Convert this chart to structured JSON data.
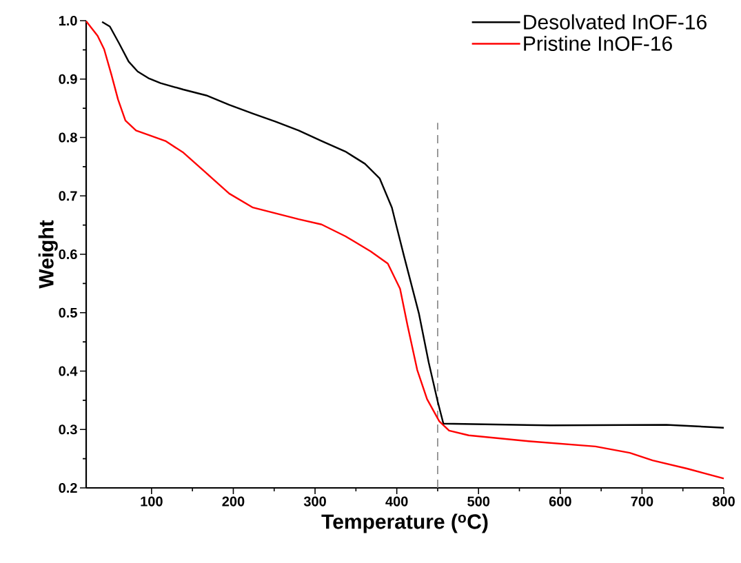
{
  "chart_data": {
    "type": "line",
    "xlabel": "Temperature ($^{o}$C)",
    "ylabel": "Weight",
    "xlim": [
      20,
      800
    ],
    "ylim": [
      0.2,
      1.0
    ],
    "xticks": [
      100,
      200,
      300,
      400,
      500,
      600,
      700,
      800
    ],
    "yticks": [
      0.2,
      0.3,
      0.4,
      0.5,
      0.6,
      0.7,
      0.8,
      0.9,
      {
        "value": 1.0,
        "label": "1.0"
      }
    ],
    "grid": false,
    "legend": "top right",
    "marker": "none",
    "line_style": "solid",
    "ref_lines": [
      {
        "axis": "x",
        "value": 450,
        "color": "#808080",
        "line_style": "dashed"
      }
    ],
    "series": [
      {
        "name": "Desolvated InOF-16",
        "color": "#000000",
        "x": [
          39.5,
          49,
          60,
          72,
          83,
          97,
          111,
          139,
          167,
          195,
          224,
          252,
          280,
          308,
          337,
          361,
          379,
          394,
          400,
          409,
          427,
          439,
          450,
          457,
          588,
          730,
          800
        ],
        "values": [
          0.998,
          0.99,
          0.962,
          0.93,
          0.913,
          0.901,
          0.893,
          0.882,
          0.872,
          0.856,
          0.841,
          0.827,
          0.812,
          0.794,
          0.776,
          0.755,
          0.73,
          0.68,
          0.646,
          0.596,
          0.499,
          0.415,
          0.348,
          0.31,
          0.307,
          0.308,
          0.303
        ]
      },
      {
        "name": "Pristine InOF-16",
        "color": "#ff0000",
        "x": [
          20,
          34,
          42,
          51,
          59,
          68,
          81,
          97,
          117,
          139,
          167,
          195,
          224,
          252,
          280,
          308,
          337,
          368,
          389,
          404,
          413,
          425,
          437,
          452,
          464,
          488,
          561,
          643,
          685,
          713,
          755,
          800
        ],
        "values": [
          0.999,
          0.974,
          0.951,
          0.907,
          0.865,
          0.829,
          0.812,
          0.804,
          0.794,
          0.774,
          0.739,
          0.704,
          0.68,
          0.67,
          0.66,
          0.651,
          0.631,
          0.605,
          0.584,
          0.541,
          0.479,
          0.402,
          0.352,
          0.314,
          0.298,
          0.29,
          0.28,
          0.271,
          0.26,
          0.247,
          0.233,
          0.216
        ]
      }
    ]
  }
}
